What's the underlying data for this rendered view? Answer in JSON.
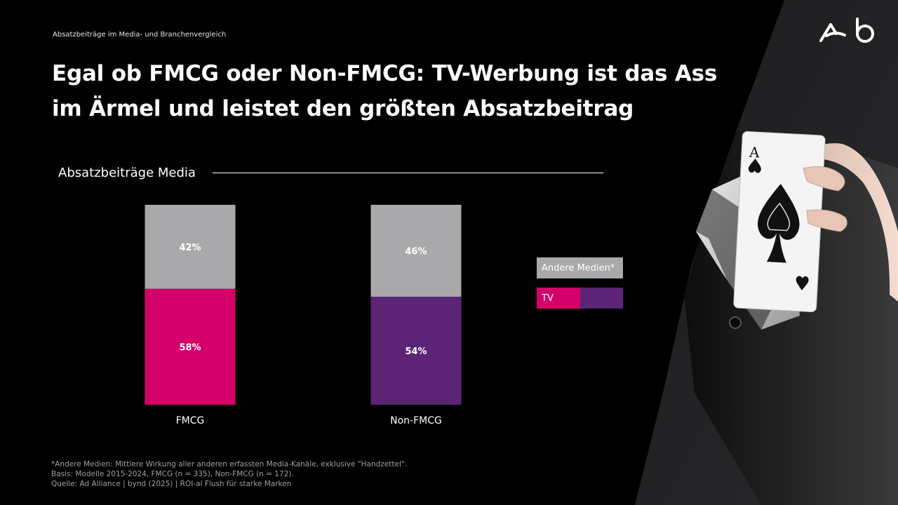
{
  "eyebrow": "Absatzbeiträge im Media- und Branchenvergleich",
  "title": "Egal ob FMCG oder Non-FMCG: TV-Werbung ist das Ass im Ärmel und leistet den größten Absatzbeitrag",
  "section_label": "Absatzbeiträge Media",
  "legend": {
    "other": "Andere Medien*",
    "tv": "TV"
  },
  "colors": {
    "other": "#a9a8ab",
    "tv_fmcg": "#d6006a",
    "tv_non_fmcg": "#5c2476"
  },
  "chart_data": {
    "type": "bar",
    "stacked": true,
    "categories": [
      "FMCG",
      "Non-FMCG"
    ],
    "series": [
      {
        "name": "TV",
        "values": [
          58,
          54
        ],
        "labels": [
          "58%",
          "54%"
        ]
      },
      {
        "name": "Andere Medien*",
        "values": [
          42,
          46
        ],
        "labels": [
          "42%",
          "46%"
        ]
      }
    ],
    "ylim": [
      0,
      100
    ],
    "grid": false,
    "legend_position": "right"
  },
  "footnotes": [
    "*Andere Medien: Mittlere Wirkung aller anderen erfassten Media-Kanäle, exklusive \"Handzettel\".",
    "Basis: Modelle 2015-2024, FMCG (n = 335), Non-FMCG (n = 172).",
    "Quelle: Ad Alliance | bynd (2025) | ROI-al Flush für starke Marken"
  ]
}
